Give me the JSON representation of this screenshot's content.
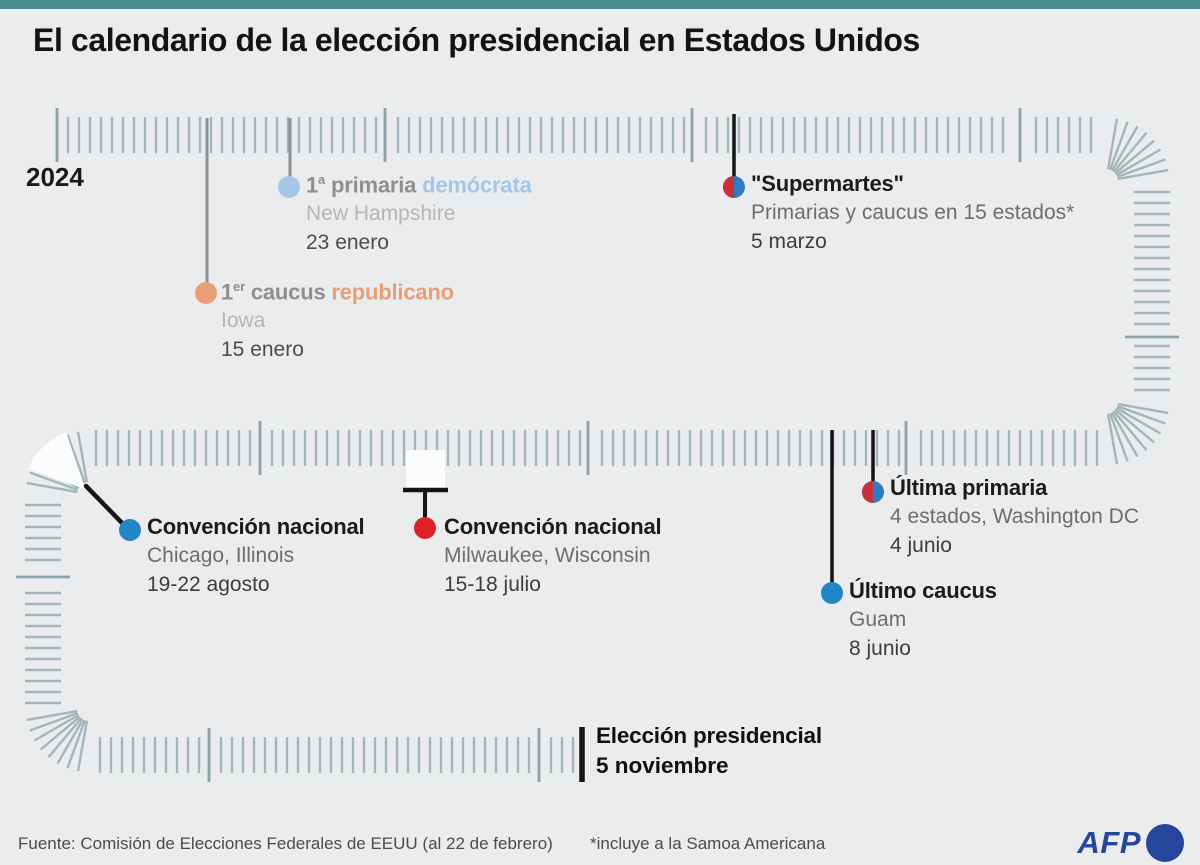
{
  "title": "El calendario de la elección presidencial en Estados Unidos",
  "year_label": "2024",
  "footer": {
    "source": "Fuente: Comisión de Elecciones Federales de EEUU (al 22 de febrero)",
    "footnote": "*incluye a la Samoa Americana",
    "brand": "AFP"
  },
  "colors": {
    "background": "#eaecee",
    "top_bar": "#4e8b93",
    "ink": "#151515",
    "tick": "#a3b6ba",
    "tick_month": "#8ba3a9",
    "muted_line": "#8e9094",
    "democrat_blue": "#2387c7",
    "democrat_light_blue": "#a5c6e6",
    "republican_red": "#dc2026",
    "republican_salmon": "#ea9e76",
    "half_dot_red": "#c8303a",
    "half_dot_blue": "#2e7cbf",
    "range_white": "#fafcfd",
    "afp_blue": "#25469b"
  },
  "events": [
    {
      "id": "first-democratic-primary",
      "label_prefix": "1",
      "label_sup": "a",
      "label_main": "primaria",
      "label_accent": "demócrata",
      "location": "New Hampshire",
      "date": "23 enero",
      "status": "past",
      "marker": "dot"
    },
    {
      "id": "first-republican-caucus",
      "label_prefix": "1",
      "label_sup": "er",
      "label_main": "caucus",
      "label_accent": "republicano",
      "location": "Iowa",
      "date": "15 enero",
      "status": "past",
      "marker": "dot"
    },
    {
      "id": "super-tuesday",
      "label": "\"Supermartes\"",
      "location": "Primarias y caucus en 15 estados*",
      "date": "5 marzo",
      "status": "upcoming",
      "marker": "split-dot"
    },
    {
      "id": "last-primary",
      "label": "Última primaria",
      "location": "4 estados, Washington DC",
      "date": "4 junio",
      "status": "upcoming",
      "marker": "split-dot"
    },
    {
      "id": "last-caucus",
      "label": "Último caucus",
      "location": "Guam",
      "date": "8 junio",
      "status": "upcoming",
      "marker": "dot"
    },
    {
      "id": "democratic-convention",
      "label": "Convención nacional",
      "location": "Chicago, Illinois",
      "date": "19-22 agosto",
      "status": "upcoming",
      "marker": "range-wedge"
    },
    {
      "id": "republican-convention",
      "label": "Convención nacional",
      "location": "Milwaukee, Wisconsin",
      "date": "15-18 julio",
      "status": "upcoming",
      "marker": "range-block"
    },
    {
      "id": "presidential-election",
      "label": "Elección presidencial",
      "date": "5 noviembre",
      "status": "upcoming",
      "marker": "bold-tick"
    }
  ]
}
